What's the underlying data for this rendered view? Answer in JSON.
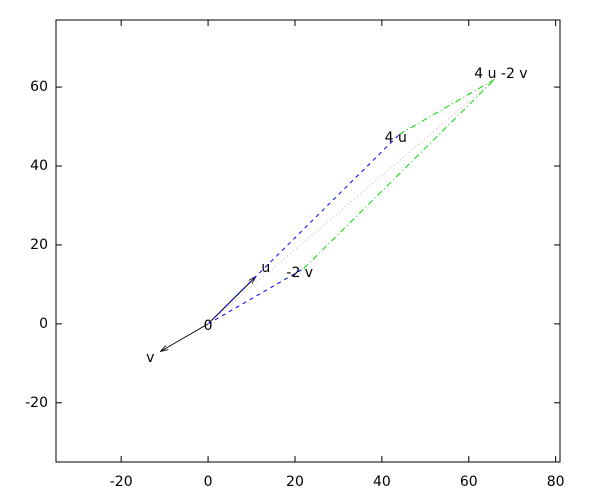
{
  "chart_data": {
    "type": "vector",
    "xlim": [
      -35,
      81
    ],
    "ylim": [
      -35,
      77
    ],
    "xticks": [
      -20,
      0,
      20,
      40,
      60,
      80
    ],
    "yticks": [
      -20,
      0,
      20,
      40,
      60
    ],
    "series": [
      {
        "color": "#000000",
        "dash": "solid",
        "arrow": true,
        "x": [
          0,
          11
        ],
        "y": [
          0,
          12
        ]
      },
      {
        "color": "#000000",
        "dash": "solid",
        "arrow": true,
        "x": [
          0,
          -11
        ],
        "y": [
          0,
          -7
        ]
      },
      {
        "color": "#0000ff",
        "dash": "dashed",
        "arrow": false,
        "x": [
          0,
          44
        ],
        "y": [
          0,
          48
        ]
      },
      {
        "color": "#0000ff",
        "dash": "dashed",
        "arrow": false,
        "x": [
          0,
          22
        ],
        "y": [
          0,
          14
        ]
      },
      {
        "color": "#00dd00",
        "dash": "dashdot",
        "arrow": false,
        "x": [
          44,
          66
        ],
        "y": [
          48,
          62
        ]
      },
      {
        "color": "#00dd00",
        "dash": "dashdot",
        "arrow": false,
        "x": [
          22,
          66
        ],
        "y": [
          14,
          62
        ]
      },
      {
        "color": "#d8a8a8",
        "dash": "dotted",
        "arrow": false,
        "x": [
          0,
          66
        ],
        "y": [
          0,
          62
        ]
      }
    ],
    "annotations": [
      {
        "text": "0",
        "x": 0,
        "y": -0.5
      },
      {
        "text": "u",
        "x": 13.3,
        "y": 14.2
      },
      {
        "text": "v",
        "x": -13.3,
        "y": -8.6
      },
      {
        "text": "4 u",
        "x": 43.2,
        "y": 47.1
      },
      {
        "text": "-2 v",
        "x": 21.1,
        "y": 12.9
      },
      {
        "text": "4 u -2 v",
        "x": 67.4,
        "y": 63.3
      }
    ]
  }
}
